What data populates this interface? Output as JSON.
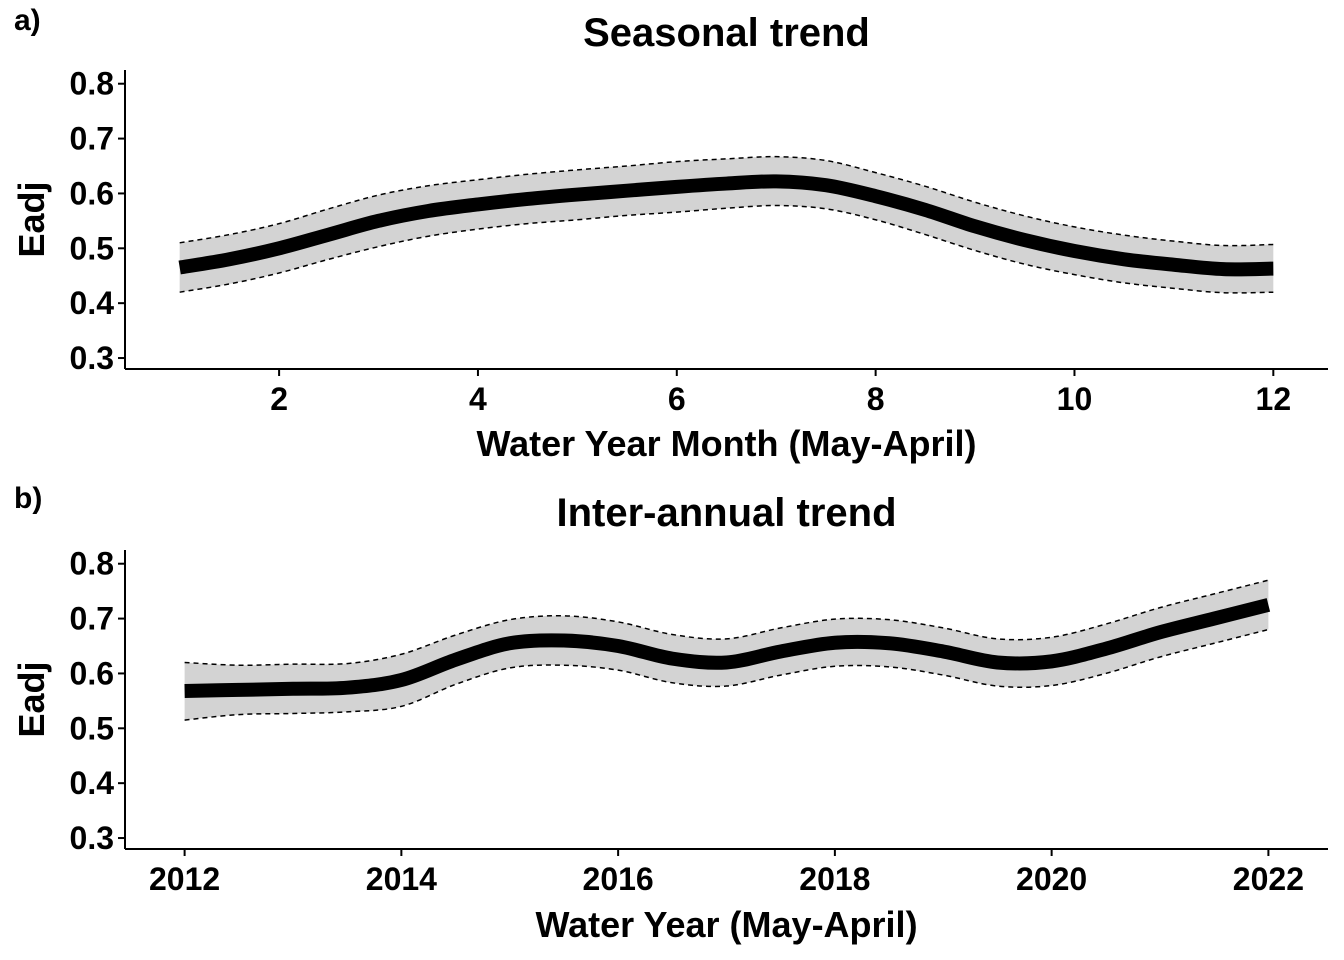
{
  "chart_data": [
    {
      "type": "line",
      "panel_tag": "a)",
      "title": "Seasonal trend",
      "xlabel": "Water Year Month (May-April)",
      "ylabel": "Eadj",
      "xlim": [
        0.45,
        12.55
      ],
      "ylim": [
        0.28,
        0.825
      ],
      "xticks": [
        2,
        4,
        6,
        8,
        10,
        12
      ],
      "yticks": [
        0.3,
        0.4,
        0.5,
        0.6,
        0.7,
        0.8
      ],
      "ytick_labels": [
        "0.3",
        "0.4",
        "0.5",
        "0.6",
        "0.7",
        "0.8"
      ],
      "grid": false,
      "x": [
        1,
        1.5,
        2,
        2.5,
        3,
        3.5,
        4,
        4.5,
        5,
        5.5,
        6,
        6.5,
        7,
        7.5,
        8,
        8.5,
        9,
        9.5,
        10,
        10.5,
        11,
        11.5,
        12
      ],
      "fit": [
        0.465,
        0.48,
        0.5,
        0.525,
        0.55,
        0.568,
        0.58,
        0.59,
        0.598,
        0.605,
        0.612,
        0.618,
        0.622,
        0.615,
        0.595,
        0.57,
        0.54,
        0.515,
        0.495,
        0.48,
        0.47,
        0.462,
        0.463
      ],
      "lower": [
        0.42,
        0.435,
        0.455,
        0.48,
        0.503,
        0.522,
        0.535,
        0.545,
        0.552,
        0.56,
        0.566,
        0.573,
        0.578,
        0.572,
        0.552,
        0.525,
        0.496,
        0.471,
        0.452,
        0.437,
        0.427,
        0.419,
        0.42
      ],
      "upper": [
        0.51,
        0.525,
        0.545,
        0.572,
        0.597,
        0.614,
        0.625,
        0.635,
        0.643,
        0.65,
        0.658,
        0.663,
        0.667,
        0.66,
        0.638,
        0.613,
        0.584,
        0.559,
        0.539,
        0.524,
        0.513,
        0.505,
        0.507
      ]
    },
    {
      "type": "line",
      "panel_tag": "b)",
      "title": "Inter-annual trend",
      "xlabel": "Water Year (May-April)",
      "ylabel": "Eadj",
      "xlim": [
        2011.45,
        2022.55
      ],
      "ylim": [
        0.28,
        0.825
      ],
      "xticks": [
        2012,
        2014,
        2016,
        2018,
        2020,
        2022
      ],
      "yticks": [
        0.3,
        0.4,
        0.5,
        0.6,
        0.7,
        0.8
      ],
      "ytick_labels": [
        "0.3",
        "0.4",
        "0.5",
        "0.6",
        "0.7",
        "0.8"
      ],
      "grid": false,
      "x": [
        2012,
        2012.5,
        2013,
        2013.5,
        2014,
        2014.5,
        2015,
        2015.5,
        2016,
        2016.5,
        2017,
        2017.5,
        2018,
        2018.5,
        2019,
        2019.5,
        2020,
        2020.5,
        2021,
        2021.5,
        2022
      ],
      "fit": [
        0.568,
        0.57,
        0.572,
        0.574,
        0.588,
        0.625,
        0.655,
        0.66,
        0.65,
        0.627,
        0.62,
        0.64,
        0.656,
        0.655,
        0.64,
        0.62,
        0.622,
        0.645,
        0.675,
        0.7,
        0.725
      ],
      "lower": [
        0.515,
        0.525,
        0.527,
        0.53,
        0.54,
        0.58,
        0.61,
        0.615,
        0.606,
        0.583,
        0.577,
        0.597,
        0.613,
        0.612,
        0.597,
        0.577,
        0.578,
        0.6,
        0.63,
        0.655,
        0.68
      ],
      "upper": [
        0.62,
        0.615,
        0.617,
        0.618,
        0.635,
        0.67,
        0.698,
        0.705,
        0.694,
        0.671,
        0.663,
        0.683,
        0.699,
        0.698,
        0.683,
        0.663,
        0.666,
        0.69,
        0.72,
        0.745,
        0.77
      ]
    }
  ]
}
